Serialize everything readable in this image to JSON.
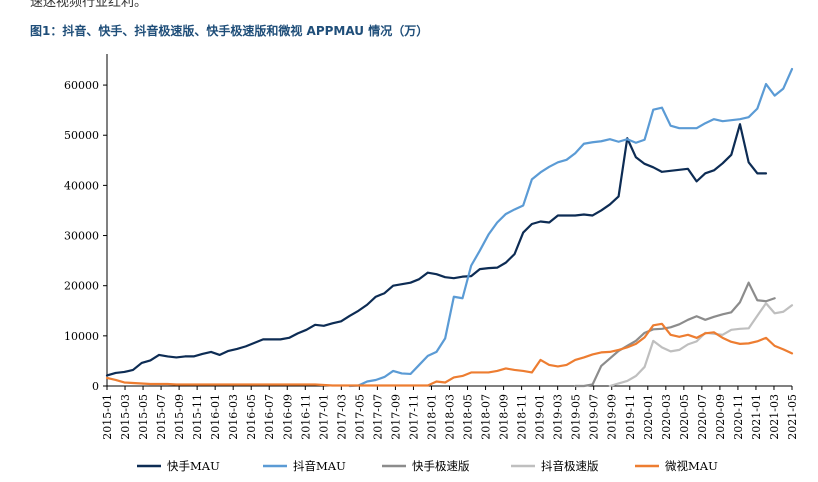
{
  "page": {
    "top_fragment": "速迷视频行业红利。",
    "title": "图1：抖音、快手、抖音极速版、快手极速版和微视 APPMAU 情况（万）"
  },
  "chart_data": {
    "type": "line",
    "title": "图1：抖音、快手、抖音极速版、快手极速版和微视 APPMAU 情况（万）",
    "ylim": [
      0,
      65000
    ],
    "yticks": [
      0,
      10000,
      20000,
      30000,
      40000,
      50000,
      60000
    ],
    "legend_position": "bottom",
    "grid": false,
    "x_tick_labels": [
      "2015-01",
      "2015-03",
      "2015-05",
      "2015-07",
      "2015-09",
      "2015-11",
      "2016-01",
      "2016-03",
      "2016-05",
      "2016-07",
      "2016-09",
      "2016-11",
      "2017-01",
      "2017-03",
      "2017-05",
      "2017-07",
      "2017-09",
      "2017-11",
      "2018-01",
      "2018-03",
      "2018-05",
      "2018-07",
      "2018-09",
      "2018-11",
      "2019-01",
      "2019-03",
      "2019-05",
      "2019-07",
      "2019-09",
      "2019-11",
      "2020-01",
      "2020-03",
      "2020-05",
      "2020-07",
      "2020-09",
      "2020-11",
      "2021-01",
      "2021-03",
      "2021-05"
    ],
    "series": [
      {
        "name": "快手MAU",
        "color": "#0d2c54",
        "values": [
          2100,
          2600,
          2800,
          3200,
          4600,
          5100,
          6200,
          5900,
          5700,
          5900,
          5900,
          6400,
          6800,
          6200,
          7000,
          7400,
          7900,
          8600,
          9300,
          9300,
          9300,
          9600,
          10500,
          11200,
          12200,
          12000,
          12500,
          12900,
          14000,
          15000,
          16200,
          17800,
          18500,
          20000,
          20300,
          20600,
          21300,
          22600,
          22300,
          21700,
          21500,
          21800,
          21900,
          23300,
          23500,
          23600,
          24600,
          26300,
          30600,
          32300,
          32800,
          32600,
          34000,
          34000,
          34000,
          34200,
          34000,
          35000,
          36200,
          37800,
          49400,
          45600,
          44300,
          43600,
          42700,
          42900,
          43100,
          43300,
          40800,
          42400,
          43000,
          44400,
          46100,
          52200,
          44600,
          42400,
          42400
        ]
      },
      {
        "name": "抖音MAU",
        "color": "#5b9bd5",
        "values": [
          null,
          null,
          null,
          null,
          null,
          null,
          null,
          null,
          null,
          null,
          null,
          null,
          null,
          null,
          null,
          null,
          null,
          null,
          null,
          null,
          null,
          null,
          null,
          null,
          null,
          null,
          null,
          null,
          0,
          100,
          900,
          1200,
          1800,
          3000,
          2500,
          2400,
          4200,
          6000,
          6800,
          9500,
          17800,
          17500,
          24000,
          27000,
          30200,
          32600,
          34300,
          35200,
          36000,
          41200,
          42600,
          43700,
          44600,
          45100,
          46400,
          48300,
          48600,
          48800,
          49200,
          48700,
          49200,
          48500,
          49100,
          55100,
          55500,
          51900,
          51400,
          51400,
          51400,
          52400,
          53200,
          52800,
          53000,
          53200,
          53600,
          55300,
          60200,
          57900,
          59300,
          63200
        ]
      },
      {
        "name": "快手极速版",
        "color": "#8c8c8c",
        "values": [
          null,
          null,
          null,
          null,
          null,
          null,
          null,
          null,
          null,
          null,
          null,
          null,
          null,
          null,
          null,
          null,
          null,
          null,
          null,
          null,
          null,
          null,
          null,
          null,
          null,
          null,
          null,
          null,
          null,
          null,
          null,
          null,
          null,
          null,
          null,
          null,
          null,
          null,
          null,
          null,
          null,
          null,
          null,
          null,
          null,
          null,
          null,
          null,
          null,
          null,
          null,
          null,
          null,
          null,
          0,
          0,
          300,
          4000,
          5500,
          7000,
          8000,
          9000,
          10600,
          11300,
          11400,
          11700,
          12300,
          13200,
          13900,
          13200,
          13800,
          14300,
          14700,
          16700,
          20600,
          17100,
          16900,
          17500
        ]
      },
      {
        "name": "抖音极速版",
        "color": "#bfbfbf",
        "values": [
          null,
          null,
          null,
          null,
          null,
          null,
          null,
          null,
          null,
          null,
          null,
          null,
          null,
          null,
          null,
          null,
          null,
          null,
          null,
          null,
          null,
          null,
          null,
          null,
          null,
          null,
          null,
          null,
          null,
          null,
          null,
          null,
          null,
          null,
          null,
          null,
          null,
          null,
          null,
          null,
          null,
          null,
          null,
          null,
          null,
          null,
          null,
          null,
          null,
          null,
          null,
          null,
          null,
          null,
          null,
          null,
          null,
          null,
          0,
          500,
          1000,
          2000,
          3800,
          9000,
          7700,
          6900,
          7200,
          8300,
          8900,
          10600,
          10400,
          10200,
          11200,
          11400,
          11500,
          14000,
          16500,
          14500,
          14800,
          16100
        ]
      },
      {
        "name": "微视MAU",
        "color": "#ed7d31",
        "values": [
          1600,
          1200,
          700,
          600,
          500,
          400,
          400,
          400,
          300,
          300,
          300,
          300,
          300,
          300,
          300,
          300,
          300,
          300,
          300,
          300,
          300,
          300,
          300,
          300,
          300,
          200,
          100,
          100,
          100,
          100,
          100,
          100,
          100,
          100,
          100,
          100,
          100,
          100,
          900,
          700,
          1700,
          2000,
          2700,
          2700,
          2700,
          3000,
          3500,
          3200,
          3000,
          2700,
          5200,
          4200,
          3900,
          4200,
          5200,
          5700,
          6300,
          6700,
          6800,
          7200,
          7700,
          8400,
          9700,
          12100,
          12400,
          10200,
          9800,
          10200,
          9600,
          10500,
          10700,
          9600,
          8800,
          8400,
          8500,
          8900,
          9600,
          8000,
          7300,
          6500
        ]
      }
    ]
  }
}
